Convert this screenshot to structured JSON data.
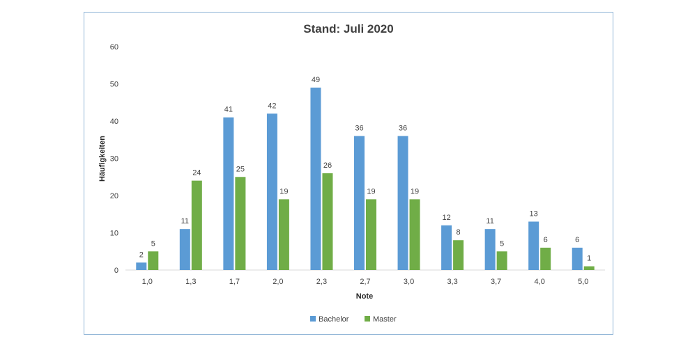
{
  "chart_data": {
    "type": "bar",
    "title": "Stand: Juli 2020",
    "xlabel": "Note",
    "ylabel": "Häufigkeiten",
    "categories": [
      "1,0",
      "1,3",
      "1,7",
      "2,0",
      "2,3",
      "2,7",
      "3,0",
      "3,3",
      "3,7",
      "4,0",
      "5,0"
    ],
    "series": [
      {
        "name": "Bachelor",
        "color": "#5b9bd5",
        "values": [
          2,
          11,
          41,
          42,
          49,
          36,
          36,
          12,
          11,
          13,
          6
        ]
      },
      {
        "name": "Master",
        "color": "#70ad47",
        "values": [
          5,
          24,
          25,
          19,
          26,
          19,
          19,
          8,
          5,
          6,
          1
        ]
      }
    ],
    "ylim": [
      0,
      60
    ],
    "yticks": [
      "0",
      "10",
      "20",
      "30",
      "40",
      "50",
      "60"
    ],
    "grid": false,
    "legend": "bottom",
    "data_labels": true
  }
}
